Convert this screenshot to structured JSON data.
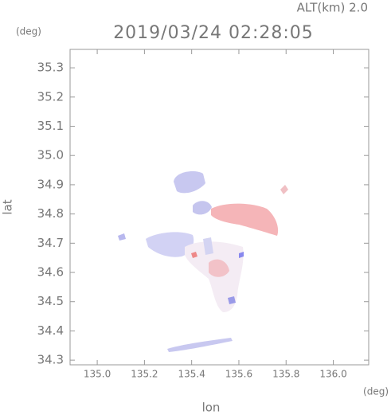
{
  "chart_data": {
    "type": "map",
    "title": "2019/03/24 02:28:05",
    "altitude_label": "ALT(km) 2.0",
    "y_unit": "(deg)",
    "x_unit": "(deg)",
    "xlabel": "lon",
    "ylabel": "lat",
    "xlim": [
      134.885,
      136.15
    ],
    "ylim": [
      34.284,
      35.363
    ],
    "xticks": [
      {
        "value": 135,
        "label": "135.0"
      },
      135.2,
      135.4,
      135.6,
      135.8,
      {
        "value": 136,
        "label": "136.0"
      }
    ],
    "yticks": [
      34.3,
      34.4,
      34.5,
      34.6,
      34.7,
      34.8,
      34.9,
      {
        "value": 35,
        "label": "35.0"
      },
      35.1,
      35.2,
      35.3
    ]
  }
}
